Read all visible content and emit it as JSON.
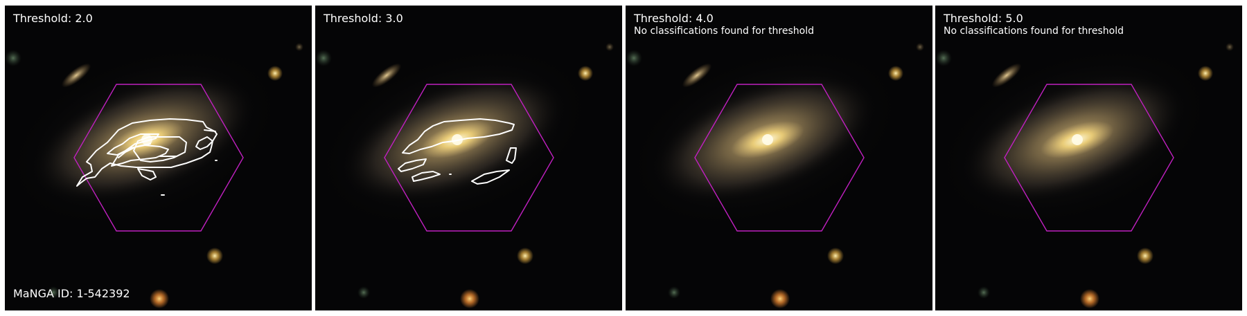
{
  "panels": [
    {
      "title": "Threshold: 2.0",
      "note": "",
      "contours": "2.0"
    },
    {
      "title": "Threshold: 3.0",
      "note": "",
      "contours": "3.0"
    },
    {
      "title": "Threshold: 4.0",
      "note": "No classifications found for threshold",
      "contours": "none"
    },
    {
      "title": "Threshold: 5.0",
      "note": "No classifications found for threshold",
      "contours": "none"
    }
  ],
  "manga_id": "MaNGA ID: 1-542392",
  "colors": {
    "hexagon": "#c020c0",
    "contour": "#ffffff",
    "sky": "#050506",
    "galaxy_core": "#fff0a0",
    "galaxy_disk": "#a08a58"
  }
}
